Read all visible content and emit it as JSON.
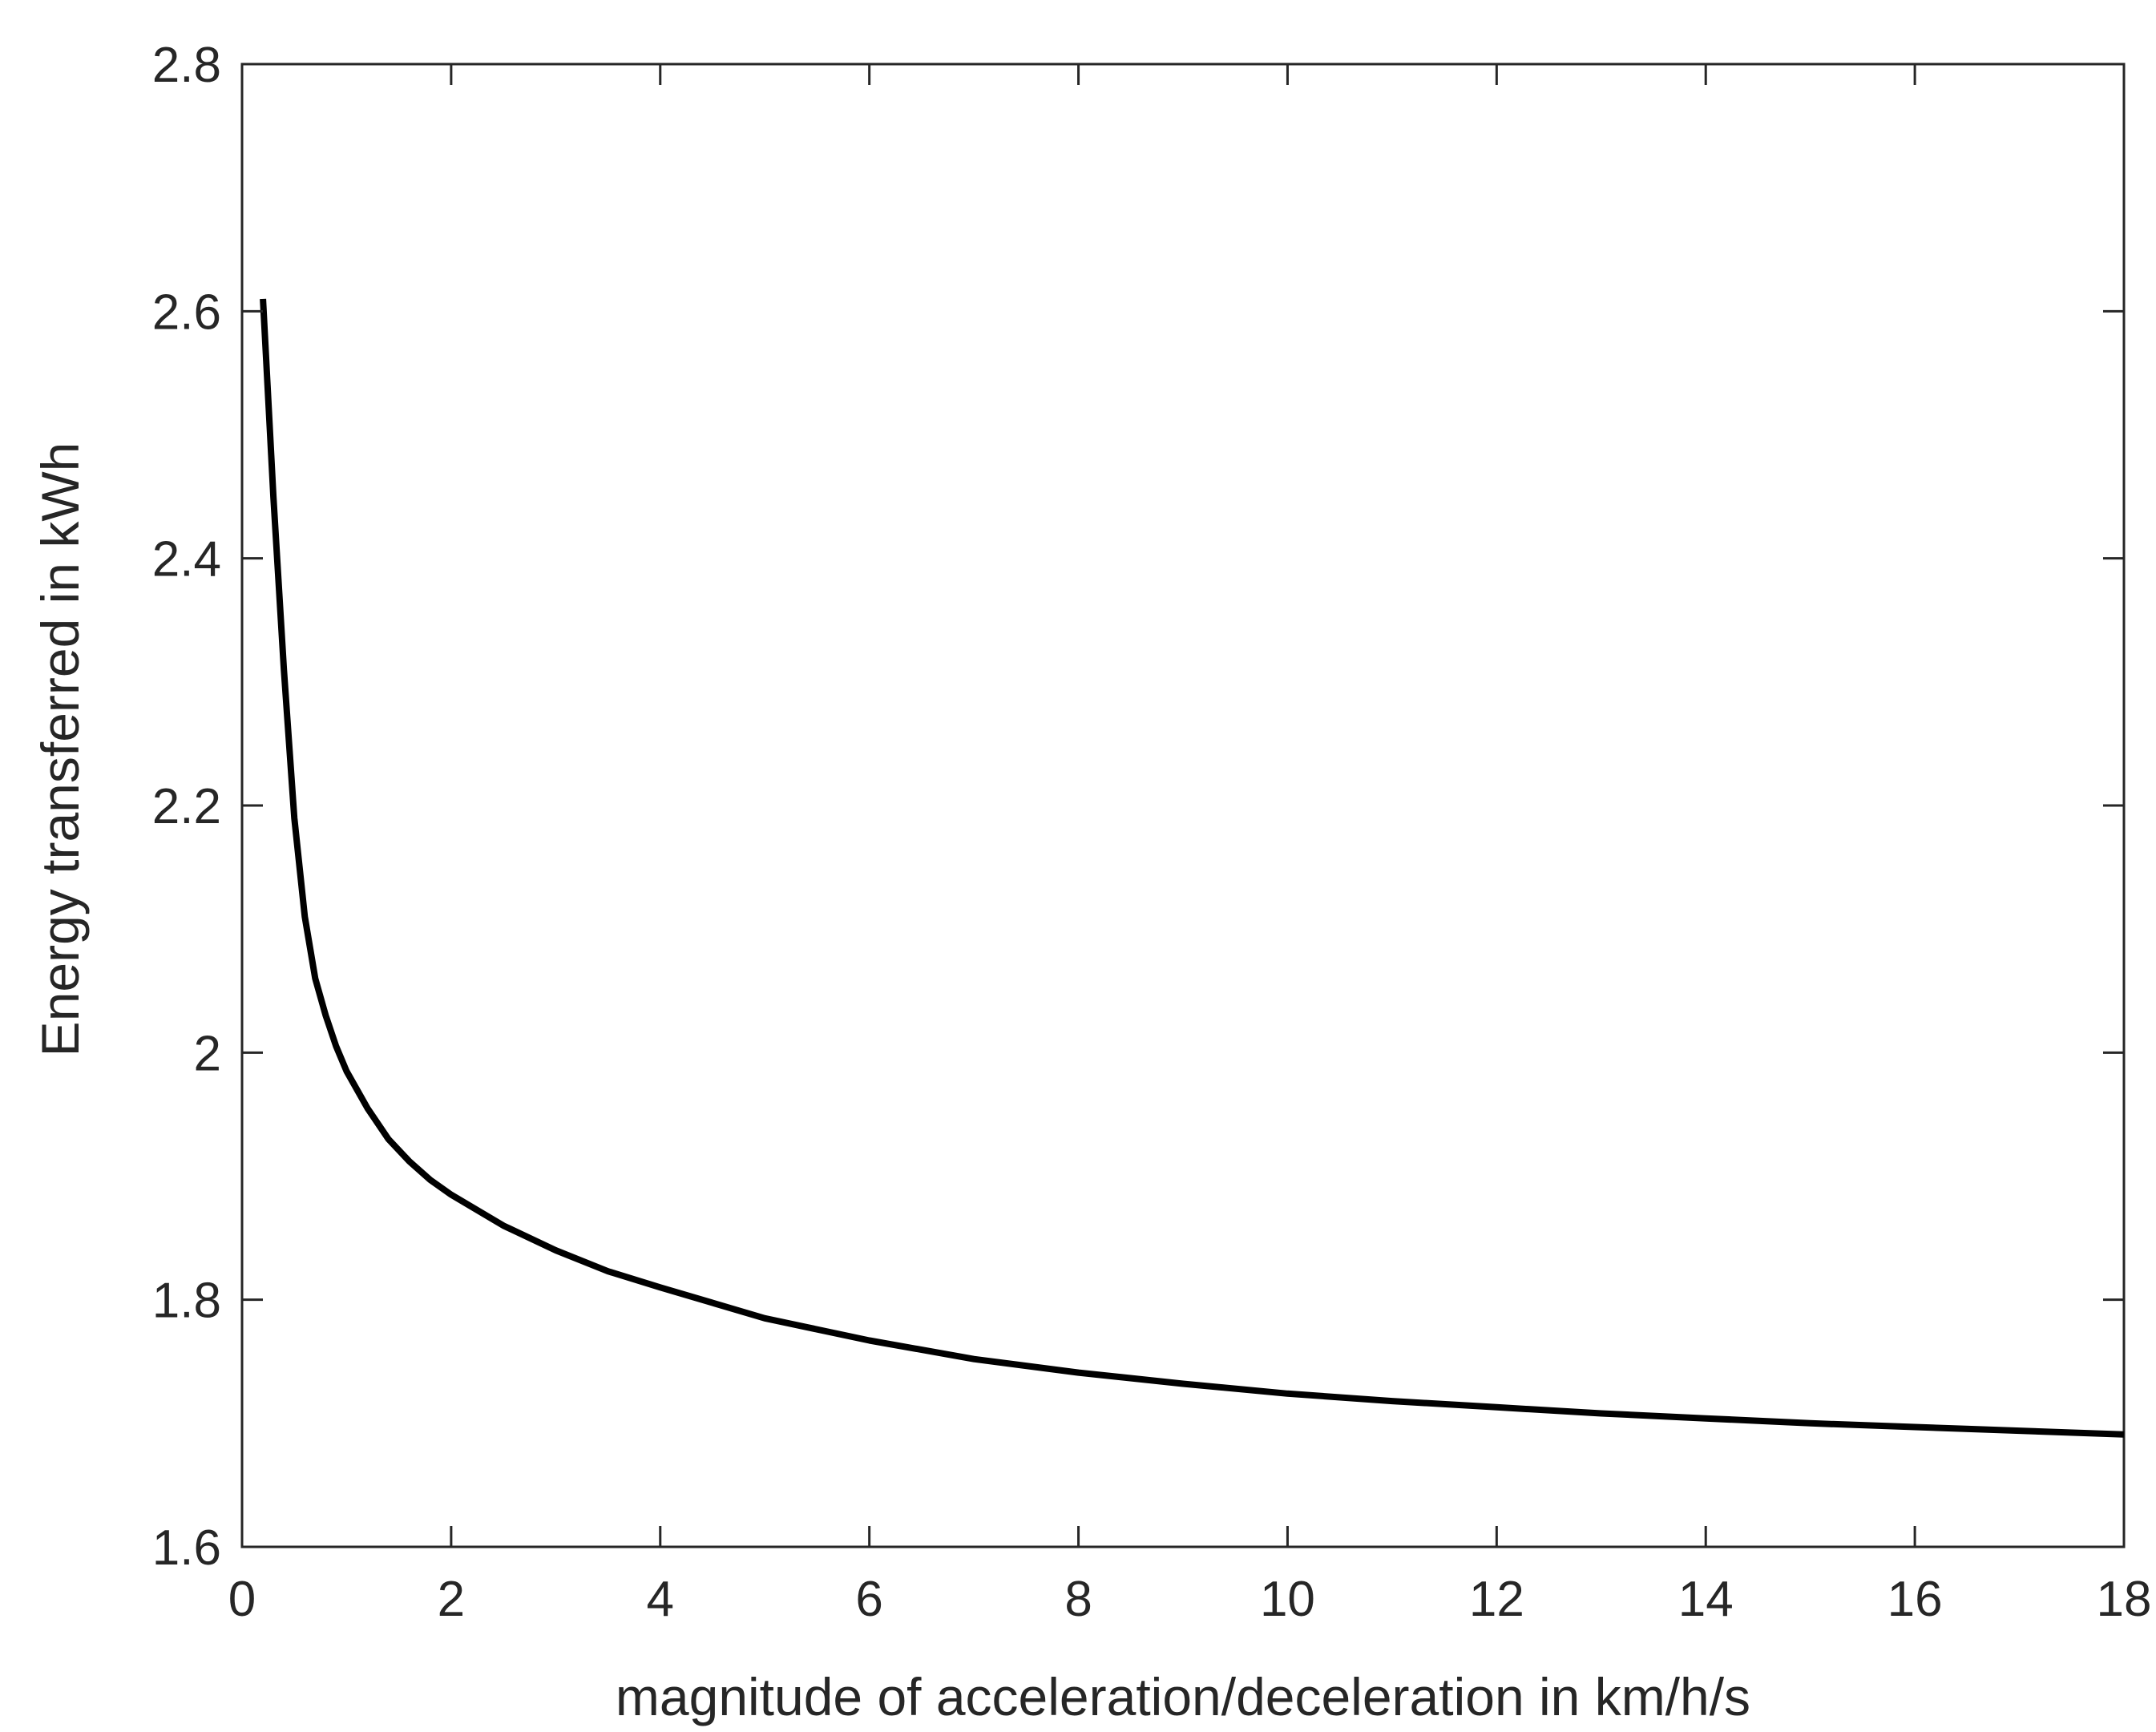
{
  "chart_data": {
    "type": "line",
    "title": "",
    "xlabel": "magnitude of acceleration/deceleration in km/h/s",
    "ylabel": "Energy transferred in kWh",
    "xlim": [
      0,
      18
    ],
    "ylim": [
      1.6,
      2.8
    ],
    "xticks": [
      "0",
      "2",
      "4",
      "6",
      "8",
      "10",
      "12",
      "14",
      "16",
      "18"
    ],
    "yticks": [
      "1.6",
      "1.8",
      "2",
      "2.2",
      "2.4",
      "2.6",
      "2.8"
    ],
    "grid": false,
    "legend": "none",
    "series": [
      {
        "color": "#000000",
        "x": [
          0.2,
          0.3,
          0.4,
          0.5,
          0.6,
          0.7,
          0.8,
          0.9,
          1.0,
          1.2,
          1.4,
          1.6,
          1.8,
          2.0,
          2.5,
          3.0,
          3.5,
          4.0,
          5.0,
          6.0,
          7.0,
          8.0,
          9.0,
          10.0,
          11.0,
          12.0,
          13.0,
          14.0,
          15.0,
          16.0,
          17.0,
          18.0
        ],
        "y": [
          2.61,
          2.45,
          2.31,
          2.19,
          2.11,
          2.06,
          2.03,
          2.005,
          1.985,
          1.955,
          1.93,
          1.912,
          1.897,
          1.885,
          1.86,
          1.84,
          1.823,
          1.81,
          1.785,
          1.767,
          1.752,
          1.741,
          1.732,
          1.724,
          1.718,
          1.713,
          1.708,
          1.704,
          1.7,
          1.697,
          1.694,
          1.691
        ]
      }
    ]
  }
}
